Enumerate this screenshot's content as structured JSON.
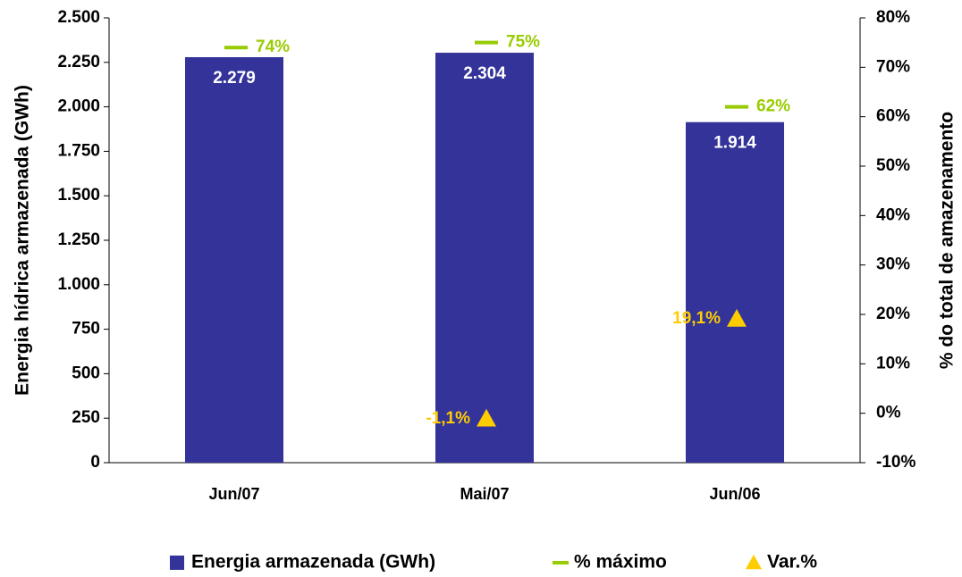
{
  "chart_data": {
    "type": "bar",
    "categories": [
      "Jun/07",
      "Mai/07",
      "Jun/06"
    ],
    "series": [
      {
        "name": "Energia armazenada (GWh)",
        "type": "bar",
        "color": "#333399",
        "values": [
          2279,
          2304,
          1914
        ],
        "value_labels": [
          "2.279",
          "2.304",
          "1.914"
        ]
      },
      {
        "name": "% máximo",
        "type": "dash",
        "axis": "y2",
        "color": "#99cc00",
        "values": [
          74,
          75,
          62
        ],
        "value_labels": [
          "74%",
          "75%",
          "62%"
        ]
      },
      {
        "name": "Var.%",
        "type": "triangle",
        "axis": "y2",
        "color": "#ffcc00",
        "values": [
          null,
          -1.1,
          19.1
        ],
        "value_labels": [
          null,
          "-1,1%",
          "19,1%"
        ]
      }
    ],
    "ylabel": "Energia hídrica armazenada (GWh)",
    "y2label": "% do total de amazenamento",
    "ylim": [
      0,
      2500
    ],
    "yticks": [
      0,
      250,
      500,
      750,
      {
        "value": 1000,
        "label": "1.000"
      },
      {
        "value": 1250,
        "label": "1.250"
      },
      {
        "value": 1500,
        "label": "1.500"
      },
      {
        "value": 1750,
        "label": "1.750"
      },
      {
        "value": 2000,
        "label": "2.000"
      },
      {
        "value": 2250,
        "label": "2.250"
      },
      {
        "value": 2500,
        "label": "2.500"
      }
    ],
    "y2lim": [
      -10,
      80
    ],
    "y2ticks": [
      {
        "value": -10,
        "label": "-10%"
      },
      {
        "value": 0,
        "label": "0%"
      },
      {
        "value": 10,
        "label": "10%"
      },
      {
        "value": 20,
        "label": "20%"
      },
      {
        "value": 30,
        "label": "30%"
      },
      {
        "value": 40,
        "label": "40%"
      },
      {
        "value": 50,
        "label": "50%"
      },
      {
        "value": 60,
        "label": "60%"
      },
      {
        "value": 70,
        "label": "70%"
      },
      {
        "value": 80,
        "label": "80%"
      }
    ],
    "legend": "bottom"
  }
}
